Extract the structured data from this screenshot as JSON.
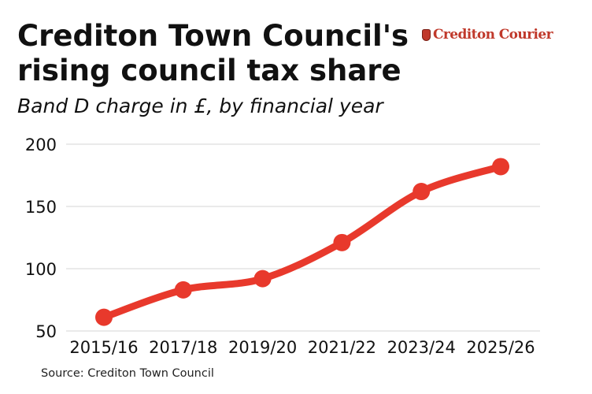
{
  "header": {
    "title": "Crediton Town Council's rising council tax share",
    "subtitle": "Band D charge in £, by financial year"
  },
  "logo": {
    "text": "Crediton Courier",
    "icon": "crest-icon"
  },
  "footer": {
    "source": "Source: Crediton Town Council"
  },
  "colors": {
    "line": "#e8392c",
    "grid": "#d4d4d4",
    "text": "#111111"
  },
  "chart_data": {
    "type": "line",
    "title": "Crediton Town Council's rising council tax share",
    "subtitle": "Band D charge in £, by financial year",
    "categories": [
      "2015/16",
      "2017/18",
      "2019/20",
      "2021/22",
      "2023/24",
      "2025/26"
    ],
    "series": [
      {
        "values": [
          61,
          83,
          92,
          121,
          162,
          182
        ]
      }
    ],
    "ylim": [
      50,
      200
    ],
    "yticks": [
      50,
      100,
      150,
      200
    ],
    "grid": true,
    "legend": "none"
  }
}
